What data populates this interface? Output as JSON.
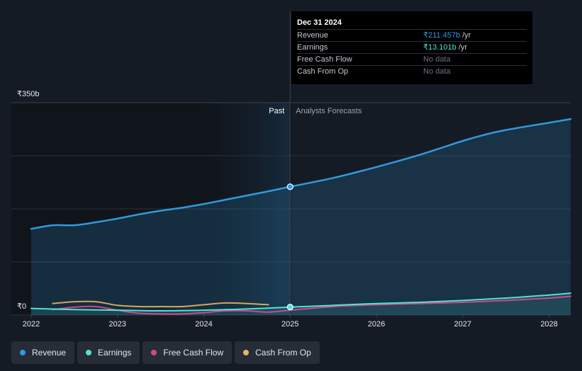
{
  "chart_data": {
    "type": "line",
    "y_axis": {
      "max_label": "₹350b",
      "min_label": "₹0",
      "ylim": [
        0,
        350
      ]
    },
    "x_axis": {
      "ticks": [
        "2022",
        "2023",
        "2024",
        "2025",
        "2026",
        "2027",
        "2028"
      ],
      "xlim": [
        2021.77,
        2028.25
      ]
    },
    "sections": {
      "past_label": "Past",
      "forecast_label": "Analysts Forecasts",
      "divider_x": 2025.0,
      "highlight_start": 2023.99
    },
    "series": [
      {
        "name": "Revenue",
        "color": "#2f9ae0",
        "fill": true,
        "x": [
          2022.0,
          2022.25,
          2022.5,
          2022.75,
          2023.0,
          2023.25,
          2023.5,
          2023.75,
          2024.0,
          2024.25,
          2024.5,
          2024.75,
          2025.0,
          2025.5,
          2026.0,
          2026.5,
          2027.0,
          2027.25,
          2027.5,
          2028.0,
          2028.25
        ],
        "y": [
          142,
          148,
          148,
          153,
          159,
          166,
          172,
          177,
          183,
          190,
          197,
          204,
          211.5,
          226,
          244,
          264,
          287,
          297,
          305,
          317,
          323
        ]
      },
      {
        "name": "Earnings",
        "color": "#50e3d4",
        "fill": true,
        "x": [
          2022.0,
          2022.5,
          2023.0,
          2023.5,
          2024.0,
          2024.5,
          2025.0,
          2025.5,
          2026.0,
          2026.5,
          2027.0,
          2027.5,
          2028.0,
          2028.25
        ],
        "y": [
          11,
          9,
          8,
          7,
          8,
          10,
          13.1,
          16,
          19,
          21,
          24,
          28,
          33,
          36
        ]
      },
      {
        "name": "Free Cash Flow",
        "color": "#d1478f",
        "fill": false,
        "x": [
          2022.25,
          2022.5,
          2022.75,
          2023.0,
          2023.25,
          2023.5,
          2023.75,
          2024.0,
          2024.25,
          2024.5,
          2024.75,
          2025.0,
          2025.5,
          2026.0,
          2026.5,
          2027.0,
          2027.5,
          2028.0,
          2028.25
        ],
        "y": [
          9,
          13,
          14,
          8,
          3,
          2,
          2,
          4,
          7,
          7,
          5,
          8,
          14,
          17,
          19,
          21,
          24,
          28,
          31
        ]
      },
      {
        "name": "Cash From Op",
        "color": "#e9b463",
        "fill": false,
        "x": [
          2022.25,
          2022.5,
          2022.75,
          2023.0,
          2023.25,
          2023.5,
          2023.75,
          2024.0,
          2024.25,
          2024.5,
          2024.75
        ],
        "y": [
          19,
          22,
          22,
          16,
          14,
          14,
          14,
          17,
          20,
          19,
          17
        ]
      }
    ],
    "highlight_points": [
      {
        "series": "Revenue",
        "x": 2025.0,
        "y": 211.5
      },
      {
        "series": "Earnings",
        "x": 2025.0,
        "y": 13.1
      }
    ]
  },
  "tooltip": {
    "date": "Dec 31 2024",
    "rows": [
      {
        "label": "Revenue",
        "value": "₹211.457b",
        "unit": " /yr",
        "kind": "revenue"
      },
      {
        "label": "Earnings",
        "value": "₹13.101b",
        "unit": " /yr",
        "kind": "earnings"
      },
      {
        "label": "Free Cash Flow",
        "value": "No data",
        "unit": "",
        "kind": "nodata"
      },
      {
        "label": "Cash From Op",
        "value": "No data",
        "unit": "",
        "kind": "nodata"
      }
    ]
  },
  "legend": [
    {
      "label": "Revenue",
      "color": "#2f9ae0"
    },
    {
      "label": "Earnings",
      "color": "#50e3d4"
    },
    {
      "label": "Free Cash Flow",
      "color": "#d1478f"
    },
    {
      "label": "Cash From Op",
      "color": "#e9b463"
    }
  ]
}
